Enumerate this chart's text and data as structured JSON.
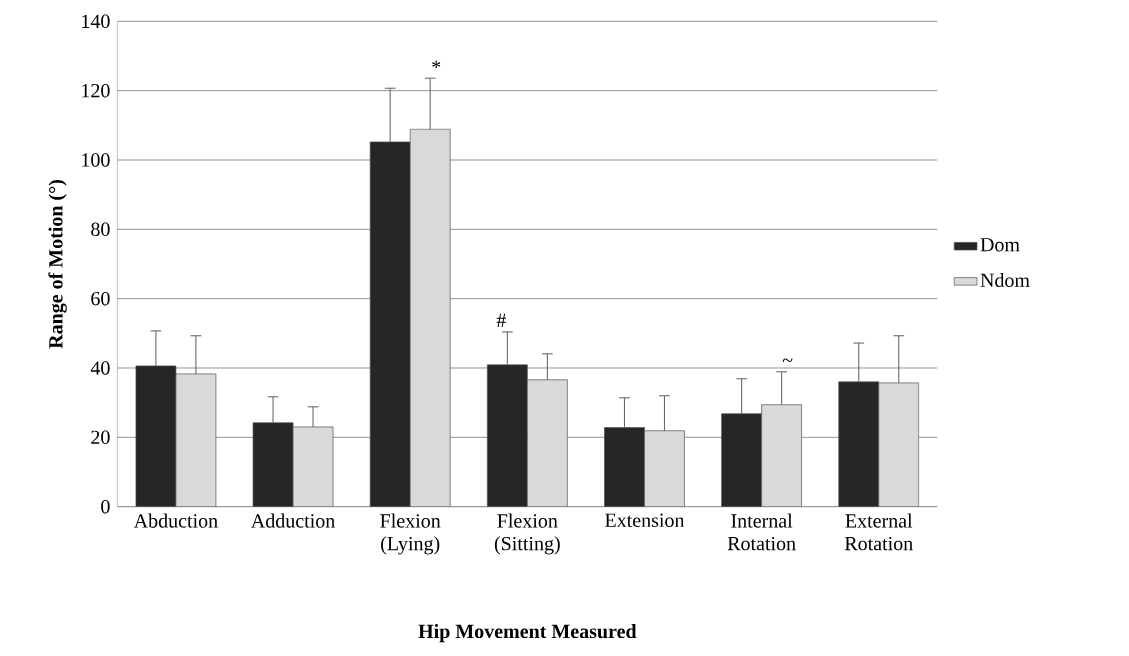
{
  "chart_data": {
    "type": "bar",
    "xlabel": "Hip Movement Measured",
    "ylabel": "Range of Motion (°)",
    "categories": [
      "Abduction",
      "Adduction",
      "Flexion (Lying)",
      "Flexion (Sitting)",
      "Extension",
      "Internal Rotation",
      "External Rotation"
    ],
    "series": [
      {
        "name": "Dom",
        "color": "#262626",
        "values": [
          40.6,
          24.2,
          105.2,
          40.9,
          22.8,
          26.8,
          36.0
        ],
        "errors": [
          10.1,
          7.5,
          15.5,
          9.5,
          8.6,
          10.1,
          11.2
        ]
      },
      {
        "name": "Ndom",
        "color": "#d9d9d9",
        "values": [
          38.3,
          23.0,
          108.9,
          36.6,
          21.9,
          29.4,
          35.7
        ],
        "errors": [
          11.0,
          5.8,
          14.7,
          7.5,
          10.1,
          9.5,
          13.6
        ]
      }
    ],
    "ylim": [
      0,
      140
    ],
    "yticks": [
      0,
      20,
      40,
      60,
      80,
      100,
      120,
      140
    ],
    "grid": "y",
    "legend": "right",
    "annotations": [
      "*",
      "#",
      "~"
    ]
  }
}
